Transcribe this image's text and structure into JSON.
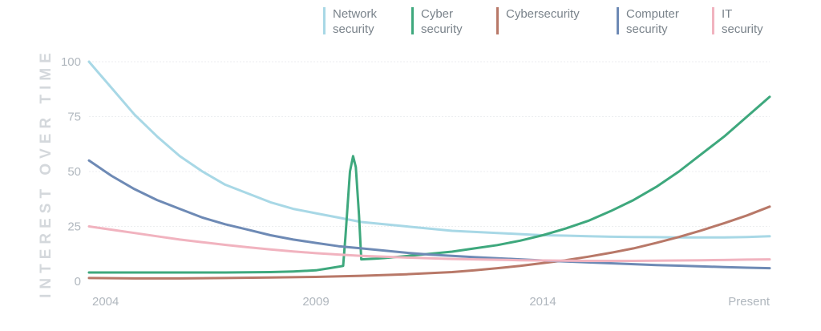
{
  "chart_data": {
    "type": "line",
    "title": "",
    "xlabel": "",
    "ylabel": "INTEREST OVER TIME",
    "ylim": [
      0,
      100
    ],
    "xlim": [
      2004,
      2019
    ],
    "yticks": [
      0,
      25,
      50,
      75,
      100
    ],
    "xticks": [
      {
        "value": 2004,
        "label": "2004"
      },
      {
        "value": 2009,
        "label": "2009"
      },
      {
        "value": 2014,
        "label": "2014"
      },
      {
        "value": 2019,
        "label": "Present"
      }
    ],
    "grid": true,
    "legend_position": "top-right",
    "series": [
      {
        "name": "Network security",
        "color": "#a8d8e6",
        "points": [
          [
            2004,
            100
          ],
          [
            2004.5,
            88
          ],
          [
            2005,
            76
          ],
          [
            2005.5,
            66
          ],
          [
            2006,
            57
          ],
          [
            2006.5,
            50
          ],
          [
            2007,
            44
          ],
          [
            2007.5,
            40
          ],
          [
            2008,
            36
          ],
          [
            2008.5,
            33
          ],
          [
            2009,
            31
          ],
          [
            2009.5,
            29
          ],
          [
            2010,
            27
          ],
          [
            2010.5,
            26
          ],
          [
            2011,
            25
          ],
          [
            2011.5,
            24
          ],
          [
            2012,
            23
          ],
          [
            2012.5,
            22.5
          ],
          [
            2013,
            22
          ],
          [
            2013.5,
            21.5
          ],
          [
            2014,
            21
          ],
          [
            2014.5,
            20.8
          ],
          [
            2015,
            20.5
          ],
          [
            2015.5,
            20.3
          ],
          [
            2016,
            20.2
          ],
          [
            2016.5,
            20.1
          ],
          [
            2017,
            20
          ],
          [
            2017.5,
            20
          ],
          [
            2018,
            20
          ],
          [
            2018.5,
            20.2
          ],
          [
            2019,
            20.5
          ]
        ]
      },
      {
        "name": "Cyber security",
        "color": "#3ea87d",
        "points": [
          [
            2004,
            4
          ],
          [
            2005,
            4
          ],
          [
            2006,
            4
          ],
          [
            2007,
            4
          ],
          [
            2008,
            4.2
          ],
          [
            2008.5,
            4.5
          ],
          [
            2009,
            5
          ],
          [
            2009.3,
            6
          ],
          [
            2009.6,
            7
          ],
          [
            2009.65,
            20
          ],
          [
            2009.75,
            50
          ],
          [
            2009.82,
            57
          ],
          [
            2009.88,
            52
          ],
          [
            2009.95,
            30
          ],
          [
            2010,
            10
          ],
          [
            2010.3,
            10.3
          ],
          [
            2010.5,
            10.6
          ],
          [
            2011,
            11.5
          ],
          [
            2011.5,
            12.5
          ],
          [
            2012,
            13.5
          ],
          [
            2012.5,
            15
          ],
          [
            2013,
            16.5
          ],
          [
            2013.5,
            18.5
          ],
          [
            2014,
            21
          ],
          [
            2014.5,
            24
          ],
          [
            2015,
            27.5
          ],
          [
            2015.5,
            32
          ],
          [
            2016,
            37
          ],
          [
            2016.5,
            43
          ],
          [
            2017,
            50
          ],
          [
            2017.5,
            58
          ],
          [
            2018,
            66
          ],
          [
            2018.5,
            75
          ],
          [
            2019,
            84
          ]
        ]
      },
      {
        "name": "Cybersecurity",
        "color": "#b87868",
        "points": [
          [
            2004,
            1.5
          ],
          [
            2005,
            1.3
          ],
          [
            2006,
            1.3
          ],
          [
            2007,
            1.5
          ],
          [
            2008,
            1.7
          ],
          [
            2009,
            2
          ],
          [
            2010,
            2.5
          ],
          [
            2011,
            3.2
          ],
          [
            2012,
            4.2
          ],
          [
            2012.5,
            5
          ],
          [
            2013,
            6
          ],
          [
            2013.5,
            7
          ],
          [
            2014,
            8.3
          ],
          [
            2014.5,
            9.6
          ],
          [
            2015,
            11.2
          ],
          [
            2015.5,
            13
          ],
          [
            2016,
            15
          ],
          [
            2016.5,
            17.5
          ],
          [
            2017,
            20.2
          ],
          [
            2017.5,
            23.2
          ],
          [
            2018,
            26.5
          ],
          [
            2018.5,
            30
          ],
          [
            2019,
            34
          ]
        ]
      },
      {
        "name": "Computer security",
        "color": "#6e8ab5",
        "points": [
          [
            2004,
            55
          ],
          [
            2004.5,
            48
          ],
          [
            2005,
            42
          ],
          [
            2005.5,
            37
          ],
          [
            2006,
            33
          ],
          [
            2006.5,
            29
          ],
          [
            2007,
            26
          ],
          [
            2007.5,
            23.5
          ],
          [
            2008,
            21
          ],
          [
            2008.5,
            19
          ],
          [
            2009,
            17.5
          ],
          [
            2009.5,
            16
          ],
          [
            2010,
            15
          ],
          [
            2010.5,
            14
          ],
          [
            2011,
            13
          ],
          [
            2011.5,
            12.2
          ],
          [
            2012,
            11.6
          ],
          [
            2012.5,
            11
          ],
          [
            2013,
            10.5
          ],
          [
            2013.5,
            10
          ],
          [
            2014,
            9.5
          ],
          [
            2014.5,
            9
          ],
          [
            2015,
            8.6
          ],
          [
            2015.5,
            8.2
          ],
          [
            2016,
            7.8
          ],
          [
            2016.5,
            7.4
          ],
          [
            2017,
            7.1
          ],
          [
            2017.5,
            6.8
          ],
          [
            2018,
            6.5
          ],
          [
            2018.5,
            6.2
          ],
          [
            2019,
            6
          ]
        ]
      },
      {
        "name": "IT security",
        "color": "#f1b3bf",
        "points": [
          [
            2004,
            25
          ],
          [
            2004.5,
            23.5
          ],
          [
            2005,
            22
          ],
          [
            2005.5,
            20.5
          ],
          [
            2006,
            19
          ],
          [
            2006.5,
            17.8
          ],
          [
            2007,
            16.6
          ],
          [
            2007.5,
            15.5
          ],
          [
            2008,
            14.5
          ],
          [
            2008.5,
            13.6
          ],
          [
            2009,
            12.8
          ],
          [
            2009.5,
            12.2
          ],
          [
            2010,
            11.6
          ],
          [
            2010.5,
            11.2
          ],
          [
            2011,
            10.8
          ],
          [
            2011.5,
            10.5
          ],
          [
            2012,
            10.2
          ],
          [
            2012.5,
            10
          ],
          [
            2013,
            9.8
          ],
          [
            2013.5,
            9.6
          ],
          [
            2014,
            9.5
          ],
          [
            2014.5,
            9.4
          ],
          [
            2015,
            9.3
          ],
          [
            2015.5,
            9.3
          ],
          [
            2016,
            9.3
          ],
          [
            2016.5,
            9.4
          ],
          [
            2017,
            9.5
          ],
          [
            2017.5,
            9.6
          ],
          [
            2018,
            9.7
          ],
          [
            2018.5,
            9.9
          ],
          [
            2019,
            10
          ]
        ]
      }
    ]
  }
}
